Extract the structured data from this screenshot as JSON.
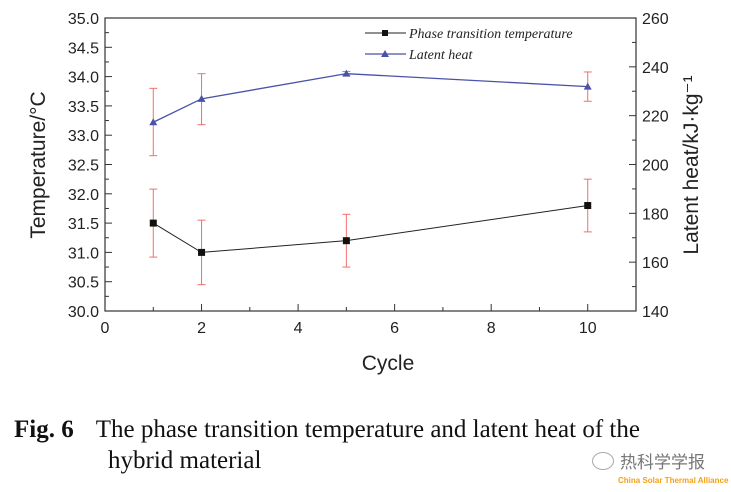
{
  "chart_data": {
    "type": "line",
    "xlabel": "Cycle",
    "ylabel_left": "Temperature/°C",
    "ylabel_right": "Latent heat/kJ·kg⁻¹",
    "xlim": [
      0,
      11
    ],
    "ylim_left": [
      30.0,
      35.0
    ],
    "ylim_right": [
      140,
      260
    ],
    "x_ticks": [
      "0",
      "2",
      "4",
      "6",
      "8",
      "10"
    ],
    "y_ticks_left": [
      "30.0",
      "30.5",
      "31.0",
      "31.5",
      "32.0",
      "32.5",
      "33.0",
      "33.5",
      "34.0",
      "34.5",
      "35.0"
    ],
    "y_ticks_right": [
      "140",
      "160",
      "180",
      "200",
      "220",
      "240",
      "260"
    ],
    "legend_position": "top-right",
    "grid": false,
    "series": [
      {
        "name": "Phase transition temperature",
        "axis": "left",
        "color": "#222222",
        "marker": "square",
        "x": [
          1,
          2,
          5,
          10
        ],
        "y": [
          31.5,
          31.0,
          31.2,
          31.8
        ],
        "err_low": [
          30.92,
          30.45,
          30.75,
          31.35
        ],
        "err_high": [
          32.08,
          31.55,
          31.65,
          32.25
        ]
      },
      {
        "name": "Latent heat",
        "axis": "right",
        "color": "#4a52a8",
        "marker": "triangle",
        "x": [
          1,
          2,
          5,
          10
        ],
        "y": [
          217.3,
          226.9,
          237.2,
          231.9
        ],
        "err_low": [
          203.6,
          216.3,
          236.4,
          225.9
        ],
        "err_high": [
          231.2,
          237.2,
          238.1,
          237.9
        ]
      }
    ],
    "error_bar_color": "#f07070"
  },
  "caption": {
    "label": "Fig. 6",
    "line1": "The phase transition temperature and latent heat of the",
    "line2": "hybrid material"
  },
  "watermark": {
    "cn": "热科学学报",
    "en": "China Solar Thermal Alliance",
    "icon": "wechat-icon"
  }
}
